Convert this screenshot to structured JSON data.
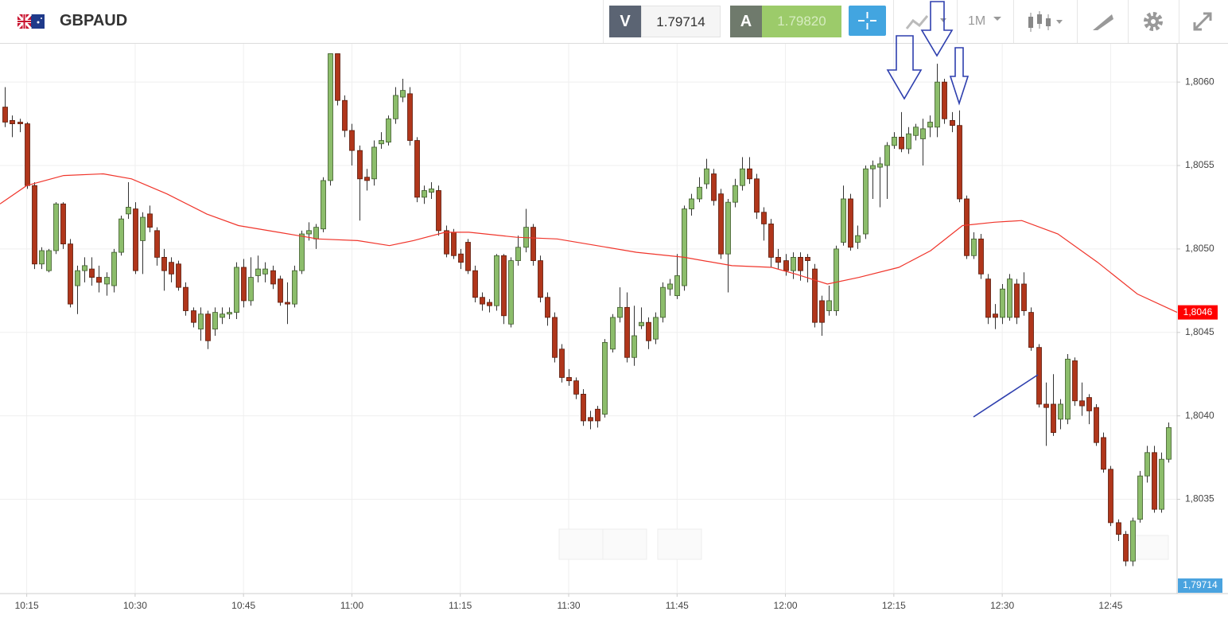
{
  "header": {
    "symbol": "GBPAUD",
    "sell_tag": "V",
    "sell_price": "1.79714",
    "buy_tag": "A",
    "buy_price": "1.79820",
    "timeframe": "1M"
  },
  "chart_data": {
    "type": "candlestick",
    "up_color": "#8cbd6b",
    "down_color": "#b0361b",
    "grid": true,
    "xlim": [
      611.3,
      774.2
    ],
    "xticks": [
      {
        "value": 615,
        "label": "10:15"
      },
      {
        "value": 630,
        "label": "10:30"
      },
      {
        "value": 645,
        "label": "10:45"
      },
      {
        "value": 660,
        "label": "11:00"
      },
      {
        "value": 675,
        "label": "11:15"
      },
      {
        "value": 690,
        "label": "11:30"
      },
      {
        "value": 705,
        "label": "11:45"
      },
      {
        "value": 720,
        "label": "12:00"
      },
      {
        "value": 735,
        "label": "12:15"
      },
      {
        "value": 750,
        "label": "12:30"
      },
      {
        "value": 765,
        "label": "12:45"
      }
    ],
    "ylim": [
      1.80294,
      1.80622
    ],
    "yticks": [
      {
        "value": 1.8035,
        "label": "1,8035"
      },
      {
        "value": 1.804,
        "label": "1,8040"
      },
      {
        "value": 1.8045,
        "label": "1,8045"
      },
      {
        "value": 1.805,
        "label": "1,8050"
      },
      {
        "value": 1.8055,
        "label": "1,8055"
      },
      {
        "value": 1.806,
        "label": "1,8060"
      }
    ],
    "bid_label": "1,79714",
    "x": [
      612,
      613,
      614,
      615,
      616,
      617,
      618,
      619,
      620,
      621,
      622,
      623,
      624,
      625,
      626,
      627,
      628,
      629,
      630,
      631,
      632,
      633,
      634,
      635,
      636,
      637,
      638,
      639,
      640,
      641,
      642,
      643,
      644,
      645,
      646,
      647,
      648,
      649,
      650,
      651,
      652,
      653,
      654,
      655,
      656,
      657,
      658,
      659,
      660,
      661,
      662,
      663,
      664,
      665,
      666,
      667,
      668,
      669,
      670,
      671,
      672,
      673,
      674,
      675,
      676,
      677,
      678,
      679,
      680,
      681,
      682,
      683,
      684,
      685,
      686,
      687,
      688,
      689,
      690,
      691,
      692,
      693,
      694,
      695,
      696,
      697,
      698,
      699,
      700,
      701,
      702,
      703,
      704,
      705,
      706,
      707,
      708,
      709,
      710,
      711,
      712,
      713,
      714,
      715,
      716,
      717,
      718,
      719,
      720,
      721,
      722,
      723,
      724,
      725,
      726,
      727,
      728,
      729,
      730,
      731,
      732,
      733,
      734,
      735,
      736,
      737,
      738,
      739,
      740,
      741,
      742,
      743,
      744,
      745,
      746,
      747,
      748,
      749,
      750,
      751,
      752,
      753,
      754,
      755,
      756,
      757,
      758,
      759,
      760,
      761,
      762,
      763,
      764,
      765,
      766,
      767,
      768,
      769,
      770,
      771,
      772,
      773
    ],
    "open": [
      1.80585,
      1.80577,
      1.80576,
      1.80575,
      1.80538,
      1.80491,
      1.80487,
      1.80499,
      1.80527,
      1.80503,
      1.80478,
      1.80487,
      1.80488,
      1.80483,
      1.80479,
      1.80478,
      1.80498,
      1.80521,
      1.80524,
      1.80505,
      1.80521,
      1.80511,
      1.80495,
      1.80492,
      1.80491,
      1.80477,
      1.80463,
      1.80452,
      1.80461,
      1.80452,
      1.80459,
      1.80461,
      1.80462,
      1.80489,
      1.80469,
      1.80484,
      1.80485,
      1.80487,
      1.80482,
      1.80468,
      1.80467,
      1.80487,
      1.80509,
      1.80506,
      1.80512,
      1.80541,
      1.80617,
      1.80589,
      1.80571,
      1.80559,
      1.80543,
      1.80542,
      1.80563,
      1.80564,
      1.80578,
      1.80591,
      1.80593,
      1.80565,
      1.80531,
      1.80534,
      1.80535,
      1.80511,
      1.8051,
      1.80497,
      1.80504,
      1.80487,
      1.80471,
      1.80468,
      1.80466,
      1.80496,
      1.80455,
      1.80493,
      1.80501,
      1.80513,
      1.80493,
      1.80471,
      1.80459,
      1.8044,
      1.80423,
      1.80421,
      1.80413,
      1.80399,
      1.80404,
      1.80401,
      1.8044,
      1.80459,
      1.80465,
      1.80435,
      1.80454,
      1.80456,
      1.80446,
      1.80459,
      1.80476,
      1.80472,
      1.80478,
      1.80524,
      1.8053,
      1.80539,
      1.80545,
      1.80533,
      1.80497,
      1.80528,
      1.80538,
      1.80548,
      1.80542,
      1.80522,
      1.80515,
      1.80495,
      1.80493,
      1.80487,
      1.80495,
      1.80495,
      1.80488,
      1.80469,
      1.80463,
      1.80463,
      1.80504,
      1.8053,
      1.80504,
      1.80509,
      1.80548,
      1.80549,
      1.8055,
      1.80562,
      1.80567,
      1.8056,
      1.80568,
      1.80566,
      1.80573,
      1.80573,
      1.806,
      1.80577,
      1.80574,
      1.8053,
      1.80496,
      1.80506,
      1.80482,
      1.80461,
      1.80459,
      1.80459,
      1.80479,
      1.80479,
      1.80462,
      1.80441,
      1.80407,
      1.80407,
      1.80398,
      1.80398,
      1.80433,
      1.80409,
      1.80411,
      1.80405,
      1.80387,
      1.80368,
      1.80336,
      1.80329,
      1.80313,
      1.80338,
      1.80364,
      1.80378,
      1.80344,
      1.80374
    ],
    "high": [
      1.80597,
      1.8058,
      1.80578,
      1.80576,
      1.8054,
      1.80501,
      1.805,
      1.80528,
      1.80528,
      1.80506,
      1.8049,
      1.80495,
      1.80495,
      1.8049,
      1.80486,
      1.805,
      1.8052,
      1.8054,
      1.80528,
      1.80522,
      1.80526,
      1.80513,
      1.805,
      1.80495,
      1.80493,
      1.8048,
      1.80465,
      1.80465,
      1.80463,
      1.80465,
      1.80465,
      1.80465,
      1.80492,
      1.80494,
      1.80495,
      1.80496,
      1.80492,
      1.8049,
      1.80484,
      1.8048,
      1.8049,
      1.80511,
      1.80516,
      1.80515,
      1.80543,
      1.80617,
      1.80617,
      1.80592,
      1.80575,
      1.80562,
      1.80548,
      1.80565,
      1.8057,
      1.8058,
      1.80597,
      1.80602,
      1.80597,
      1.80567,
      1.80538,
      1.8054,
      1.80538,
      1.80514,
      1.80512,
      1.805,
      1.80506,
      1.8049,
      1.80474,
      1.8047,
      1.80497,
      1.80497,
      1.80495,
      1.80508,
      1.80524,
      1.80515,
      1.80496,
      1.80474,
      1.80462,
      1.80443,
      1.80428,
      1.80423,
      1.80416,
      1.80403,
      1.80406,
      1.80446,
      1.80461,
      1.80477,
      1.80474,
      1.80466,
      1.80465,
      1.80459,
      1.80462,
      1.8048,
      1.80482,
      1.80497,
      1.80526,
      1.80533,
      1.80543,
      1.80554,
      1.80548,
      1.80536,
      1.8053,
      1.80542,
      1.80555,
      1.80555,
      1.80545,
      1.80525,
      1.80518,
      1.805,
      1.80497,
      1.80498,
      1.80498,
      1.80497,
      1.80491,
      1.80472,
      1.80478,
      1.80502,
      1.80538,
      1.80533,
      1.80514,
      1.8055,
      1.80553,
      1.80555,
      1.80564,
      1.8057,
      1.80582,
      1.80573,
      1.80575,
      1.80578,
      1.8058,
      1.80611,
      1.80602,
      1.80582,
      1.80583,
      1.80532,
      1.8051,
      1.80509,
      1.80485,
      1.80467,
      1.80479,
      1.80485,
      1.80482,
      1.80486,
      1.80465,
      1.80443,
      1.8042,
      1.80425,
      1.8041,
      1.80437,
      1.80435,
      1.8042,
      1.80413,
      1.80407,
      1.8039,
      1.8037,
      1.80338,
      1.80331,
      1.80339,
      1.80367,
      1.80382,
      1.80382,
      1.80378,
      1.80396
    ],
    "low": [
      1.80573,
      1.80567,
      1.8057,
      1.80536,
      1.80488,
      1.80488,
      1.80486,
      1.80497,
      1.805,
      1.80465,
      1.80461,
      1.8048,
      1.80478,
      1.80474,
      1.80472,
      1.80474,
      1.80496,
      1.80518,
      1.80485,
      1.80485,
      1.8051,
      1.8049,
      1.80475,
      1.8048,
      1.80475,
      1.8046,
      1.80453,
      1.80445,
      1.8044,
      1.80448,
      1.80455,
      1.80458,
      1.80458,
      1.80465,
      1.80466,
      1.8048,
      1.8048,
      1.80476,
      1.80466,
      1.80455,
      1.80465,
      1.80485,
      1.80505,
      1.805,
      1.8051,
      1.80538,
      1.80586,
      1.80567,
      1.8055,
      1.80517,
      1.80535,
      1.80538,
      1.8056,
      1.80562,
      1.80575,
      1.80588,
      1.80562,
      1.80528,
      1.80527,
      1.8053,
      1.80508,
      1.80495,
      1.80494,
      1.80488,
      1.80485,
      1.80468,
      1.80463,
      1.80462,
      1.80463,
      1.80455,
      1.80453,
      1.8049,
      1.80498,
      1.8049,
      1.80468,
      1.80454,
      1.80432,
      1.8042,
      1.80418,
      1.8041,
      1.80394,
      1.80392,
      1.80393,
      1.80399,
      1.80438,
      1.80456,
      1.80432,
      1.8043,
      1.80452,
      1.8044,
      1.80443,
      1.80456,
      1.80472,
      1.8047,
      1.80475,
      1.8052,
      1.80528,
      1.80536,
      1.80526,
      1.80494,
      1.80474,
      1.80525,
      1.80535,
      1.80539,
      1.80518,
      1.80505,
      1.80489,
      1.80488,
      1.80484,
      1.80482,
      1.80481,
      1.8048,
      1.80453,
      1.80448,
      1.8046,
      1.8046,
      1.80502,
      1.80499,
      1.805,
      1.80506,
      1.8053,
      1.80525,
      1.8053,
      1.8056,
      1.80558,
      1.80557,
      1.80565,
      1.8055,
      1.80567,
      1.80567,
      1.80575,
      1.8057,
      1.80528,
      1.80494,
      1.80494,
      1.80482,
      1.80455,
      1.80452,
      1.80455,
      1.80457,
      1.80455,
      1.8046,
      1.80439,
      1.80405,
      1.80382,
      1.80388,
      1.80392,
      1.80395,
      1.80406,
      1.804,
      1.80395,
      1.80382,
      1.80366,
      1.80334,
      1.80325,
      1.8031,
      1.8031,
      1.80336,
      1.8036,
      1.80342,
      1.80342,
      1.80372
    ],
    "close": [
      1.80576,
      1.80575,
      1.80575,
      1.80538,
      1.80491,
      1.80499,
      1.80499,
      1.80527,
      1.80503,
      1.80467,
      1.80487,
      1.8049,
      1.80483,
      1.8048,
      1.80483,
      1.80498,
      1.80518,
      1.80525,
      1.80487,
      1.80519,
      1.80513,
      1.80495,
      1.80487,
      1.80485,
      1.80477,
      1.80463,
      1.80456,
      1.80461,
      1.80445,
      1.80462,
      1.80461,
      1.80462,
      1.80489,
      1.80469,
      1.80483,
      1.80488,
      1.80488,
      1.80479,
      1.80468,
      1.80467,
      1.80487,
      1.80509,
      1.80511,
      1.80513,
      1.80541,
      1.80617,
      1.80589,
      1.80571,
      1.80559,
      1.80542,
      1.80541,
      1.80561,
      1.80565,
      1.80578,
      1.80592,
      1.80595,
      1.80565,
      1.80531,
      1.80535,
      1.80536,
      1.80511,
      1.80497,
      1.80496,
      1.80492,
      1.80487,
      1.80471,
      1.80467,
      1.80466,
      1.80496,
      1.8046,
      1.80493,
      1.80501,
      1.80513,
      1.80493,
      1.80471,
      1.80459,
      1.80435,
      1.80423,
      1.80421,
      1.80413,
      1.80397,
      1.80397,
      1.80397,
      1.80444,
      1.80459,
      1.80465,
      1.80435,
      1.80448,
      1.80456,
      1.80445,
      1.80459,
      1.80477,
      1.80479,
      1.80484,
      1.80524,
      1.8053,
      1.80537,
      1.80548,
      1.80529,
      1.80497,
      1.80528,
      1.80538,
      1.80548,
      1.80542,
      1.80522,
      1.80515,
      1.80495,
      1.80492,
      1.80487,
      1.80495,
      1.80487,
      1.80493,
      1.80456,
      1.80456,
      1.80469,
      1.805,
      1.8053,
      1.80501,
      1.80508,
      1.80548,
      1.8055,
      1.80551,
      1.80562,
      1.80567,
      1.8056,
      1.80569,
      1.80573,
      1.80572,
      1.80576,
      1.806,
      1.80578,
      1.80574,
      1.8053,
      1.80496,
      1.80506,
      1.80485,
      1.80459,
      1.80459,
      1.80476,
      1.80482,
      1.80459,
      1.80463,
      1.80441,
      1.80407,
      1.80405,
      1.8039,
      1.80407,
      1.80434,
      1.80409,
      1.80406,
      1.80403,
      1.80384,
      1.80368,
      1.80336,
      1.80329,
      1.80313,
      1.80337,
      1.80364,
      1.80378,
      1.80344,
      1.80374,
      1.80393
    ],
    "moving_average": {
      "color": "#f0352b",
      "end_label": "1,8046",
      "x": [
        611.3,
        615.0,
        620.1,
        625.6,
        629.5,
        634.4,
        639.9,
        644.3,
        649.8,
        655.3,
        660.8,
        665.2,
        668.5,
        672.9,
        676.2,
        682.8,
        688.4,
        693.9,
        699.4,
        706.0,
        712.6,
        718.1,
        721.4,
        725.8,
        730.2,
        735.7,
        740.1,
        744.5,
        748.9,
        752.7,
        757.7,
        763.2,
        768.7,
        774.2
      ],
      "values": [
        1.80527,
        1.80538,
        1.80544,
        1.80545,
        1.80542,
        1.80533,
        1.80521,
        1.80514,
        1.8051,
        1.80506,
        1.80505,
        1.80502,
        1.80505,
        1.8051,
        1.8051,
        1.80507,
        1.80506,
        1.80502,
        1.80498,
        1.80495,
        1.8049,
        1.80489,
        1.80485,
        1.80479,
        1.80483,
        1.80489,
        1.80499,
        1.80514,
        1.80516,
        1.80517,
        1.80509,
        1.80492,
        1.80473,
        1.80462
      ]
    }
  }
}
